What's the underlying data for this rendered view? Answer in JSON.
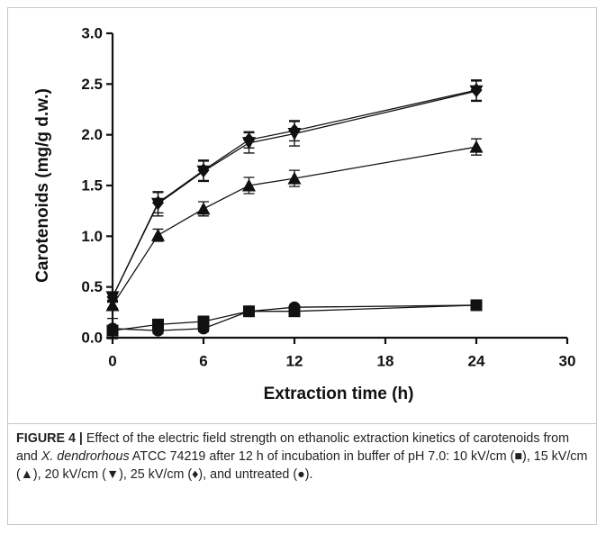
{
  "chart_data": {
    "type": "line",
    "x_label": "Extraction time (h)",
    "y_label": "Carotenoids (mg/g d.w.)",
    "x": [
      0,
      3,
      6,
      9,
      12,
      24
    ],
    "xlim": [
      0,
      30
    ],
    "xticks": [
      0,
      6,
      12,
      18,
      24,
      30
    ],
    "ylim": [
      0,
      3
    ],
    "yticks": [
      {
        "value": 0,
        "label": "0.0"
      },
      0.5,
      {
        "value": 1,
        "label": "1.0"
      },
      1.5,
      {
        "value": 2,
        "label": "2.0"
      },
      2.5,
      {
        "value": 3,
        "label": "3.0"
      }
    ],
    "series": [
      {
        "marker": "square",
        "color": "#111111",
        "values": [
          0.07,
          0.13,
          0.16,
          0.26,
          0.26,
          0.32
        ],
        "errors": [
          0.02,
          0.03,
          0.03,
          0.02,
          0.02,
          0.02
        ]
      },
      {
        "marker": "triangle-up",
        "color": "#111111",
        "values": [
          0.32,
          1.01,
          1.27,
          1.5,
          1.57,
          1.88
        ],
        "errors": [
          0.03,
          0.06,
          0.07,
          0.08,
          0.08,
          0.08
        ]
      },
      {
        "marker": "triangle-down",
        "color": "#111111",
        "values": [
          0.4,
          1.32,
          1.64,
          1.92,
          2.01,
          2.43
        ],
        "errors": [
          0.04,
          0.12,
          0.1,
          0.1,
          0.12,
          0.1
        ]
      },
      {
        "marker": "diamond",
        "color": "#111111",
        "values": [
          0.4,
          1.33,
          1.65,
          1.95,
          2.04,
          2.44
        ],
        "errors": [
          0.03,
          0.1,
          0.1,
          0.08,
          0.1,
          0.1
        ]
      },
      {
        "marker": "circle",
        "color": "#111111",
        "values": [
          0.09,
          0.07,
          0.09,
          0.26,
          0.3,
          0.32
        ],
        "errors": [
          0.1,
          0.03,
          0.03,
          0.02,
          0.02,
          0.02
        ]
      }
    ]
  },
  "caption": {
    "label": "FIGURE 4 |",
    "parts": [
      " Effect of the electric field strength on ethanolic extraction kinetics of carotenoids from and ",
      "X. dendrorhous",
      " ATCC 74219 after 12 h of incubation in buffer of pH 7.0: 10 kV/cm (■), 15 kV/cm (▲), 20 kV/cm (▼), 25 kV/cm (♦), and untreated (●)."
    ]
  }
}
